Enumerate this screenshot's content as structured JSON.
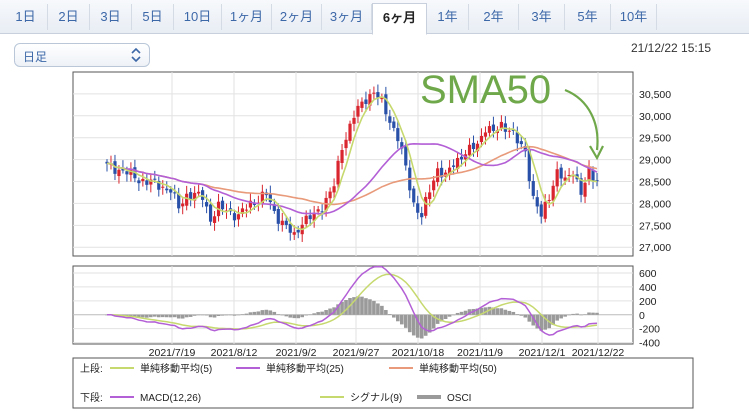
{
  "tabs": [
    {
      "label": "1日",
      "active": false
    },
    {
      "label": "2日",
      "active": false
    },
    {
      "label": "3日",
      "active": false
    },
    {
      "label": "5日",
      "active": false
    },
    {
      "label": "10日",
      "active": false
    },
    {
      "label": "1ヶ月",
      "active": false
    },
    {
      "label": "2ヶ月",
      "active": false
    },
    {
      "label": "3ヶ月",
      "active": false
    },
    {
      "label": "6ヶ月",
      "active": true
    },
    {
      "label": "1年",
      "active": false
    },
    {
      "label": "2年",
      "active": false
    },
    {
      "label": "3年",
      "active": false
    },
    {
      "label": "5年",
      "active": false
    },
    {
      "label": "10年",
      "active": false
    }
  ],
  "period_select": {
    "value": "日足"
  },
  "timestamp": "21/12/22 15:15",
  "chart_data": [
    {
      "type": "candlestick",
      "panel": "upper",
      "ylim": [
        26800,
        31000
      ],
      "yticks": [
        "27,000",
        "27,500",
        "28,000",
        "28,500",
        "29,000",
        "29,500",
        "30,000",
        "30,500"
      ],
      "xticks": [
        "2021/7/19",
        "2021/8/12",
        "2021/9/2",
        "2021/9/27",
        "2021/10/18",
        "2021/11/9",
        "2021/12/1",
        "2021/12/22"
      ],
      "series": [
        {
          "name": "単純移動平均(5)",
          "color": "#c6d96e"
        },
        {
          "name": "単純移動平均(25)",
          "color": "#b35fd6"
        },
        {
          "name": "単純移動平均(50)",
          "color": "#e89a7a"
        }
      ],
      "candle_colors": {
        "up": "#d9252e",
        "down": "#2950a8"
      },
      "annotation": "SMA50"
    },
    {
      "type": "line+bar",
      "panel": "lower",
      "ylim": [
        -420,
        700
      ],
      "yticks": [
        "600",
        "400",
        "200",
        "0",
        "-200",
        "-400"
      ],
      "series": [
        {
          "name": "MACD(12,26)",
          "color": "#b35fd6"
        },
        {
          "name": "シグナル(9)",
          "color": "#c6d96e"
        },
        {
          "name": "OSCI",
          "color": "#9a9a9a"
        }
      ]
    }
  ],
  "legend": {
    "upper_label": "上段:",
    "lower_label": "下段:"
  }
}
